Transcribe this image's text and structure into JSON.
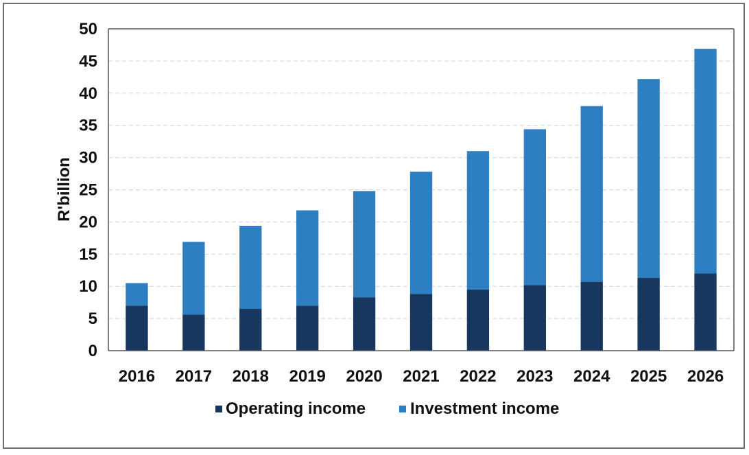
{
  "chart_data": {
    "type": "bar",
    "stacked": true,
    "categories": [
      "2016",
      "2017",
      "2018",
      "2019",
      "2020",
      "2021",
      "2022",
      "2023",
      "2024",
      "2025",
      "2026"
    ],
    "series": [
      {
        "name": "Operating income",
        "color": "#17375e",
        "values": [
          7.0,
          5.6,
          6.5,
          7.0,
          8.3,
          8.8,
          9.5,
          10.2,
          10.7,
          11.3,
          12.0
        ]
      },
      {
        "name": "Investment income",
        "color": "#2e7fc1",
        "values": [
          3.5,
          11.3,
          12.9,
          14.8,
          16.5,
          19.0,
          21.5,
          24.2,
          27.3,
          30.9,
          34.9
        ]
      }
    ],
    "ylabel": "R'billion",
    "xlabel": "",
    "ylim": [
      0,
      50
    ],
    "yticks": [
      "0",
      "5",
      "10",
      "15",
      "20",
      "25",
      "30",
      "35",
      "40",
      "45",
      "50"
    ],
    "grid": true,
    "legend": "bottom"
  }
}
